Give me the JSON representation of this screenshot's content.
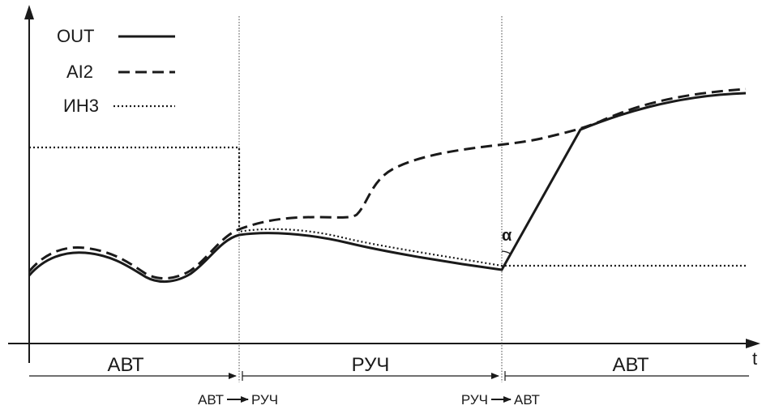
{
  "axes": {
    "x_label": "t"
  },
  "legend": {
    "items": [
      {
        "label": "OUT",
        "style": "solid"
      },
      {
        "label": "AI2",
        "style": "dashed"
      },
      {
        "label": "ИН3",
        "style": "dotted"
      }
    ]
  },
  "modes": [
    "АВТ",
    "РУЧ",
    "АВТ"
  ],
  "transitions": [
    "АВТ",
    "РУЧ",
    "РУЧ",
    "АВТ"
  ],
  "angle_label": "α",
  "colors": {
    "line": "#1a1a1a",
    "background": "#ffffff"
  }
}
